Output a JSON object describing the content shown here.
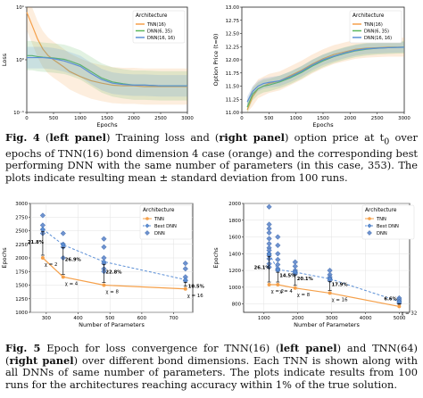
{
  "figure4": {
    "caption": {
      "label": "Fig. 4",
      "p1": " (",
      "left": "left panel",
      "p2": ") Training loss and (",
      "right": "right panel",
      "p3": ") option price at t",
      "sub": "0",
      "p4": " over epochs of TNN(16) bond dimension 4 case (orange) and the corresponding best performing DNN with the same number of parameters (in this case, 353). The plots indicate resulting mean ± standard deviation from 100 runs."
    }
  },
  "figure5": {
    "caption": {
      "label": "Fig. 5",
      "p1": " Epoch for loss convergence for TNN(16) (",
      "left": "left panel",
      "p2": ") and TNN(64) (",
      "right": "right panel",
      "p3": ") over different bond dimensions. Each TNN is shown along with all DNNs of same number of parameters. The plots indicate results from 100 runs for the architectures reaching accuracy within 1% of the true solution."
    }
  },
  "chart_data": [
    {
      "type": "line",
      "xlabel": "Epochs",
      "ylabel": "Loss",
      "yscale": "log",
      "xlim": [
        0,
        3000
      ],
      "ylim": [
        0.1,
        10
      ],
      "x_ticks": [
        "0",
        "500",
        "1000",
        "1500",
        "2000",
        "2500",
        "3000"
      ],
      "y_ticks": [
        "10⁻¹",
        "10⁰",
        "10¹"
      ],
      "legend_title": "Architecture",
      "legend_position": "top-right",
      "x": [
        0,
        100,
        200,
        300,
        400,
        500,
        600,
        700,
        800,
        1000,
        1200,
        1400,
        1600,
        1800,
        2000,
        2200,
        2500,
        2800,
        3000
      ],
      "series": [
        {
          "name": "TNN(16)",
          "color": "#f5a04a",
          "values": [
            8.0,
            4.5,
            2.5,
            1.6,
            1.2,
            1.0,
            0.85,
            0.72,
            0.6,
            0.48,
            0.4,
            0.36,
            0.33,
            0.32,
            0.32,
            0.31,
            0.31,
            0.31,
            0.31
          ]
        },
        {
          "name": "DNN(6, 35)",
          "color": "#5cb85c",
          "values": [
            1.2,
            1.2,
            1.15,
            1.12,
            1.1,
            1.08,
            1.05,
            1.02,
            0.95,
            0.8,
            0.6,
            0.45,
            0.38,
            0.35,
            0.33,
            0.33,
            0.32,
            0.32,
            0.32
          ]
        },
        {
          "name": "DNN(16, 16)",
          "color": "#5b8fd6",
          "values": [
            1.1,
            1.1,
            1.1,
            1.1,
            1.08,
            1.05,
            1.0,
            0.95,
            0.88,
            0.75,
            0.55,
            0.42,
            0.36,
            0.34,
            0.33,
            0.33,
            0.32,
            0.32,
            0.32
          ]
        }
      ]
    },
    {
      "type": "line",
      "xlabel": "Epochs",
      "ylabel": "Option Price (t=0)",
      "xlim": [
        0,
        3000
      ],
      "ylim": [
        11.0,
        13.0
      ],
      "x_ticks": [
        "0",
        "500",
        "1000",
        "1500",
        "2000",
        "2500",
        "3000"
      ],
      "y_ticks": [
        "11.00",
        "11.25",
        "11.50",
        "11.75",
        "12.00",
        "12.25",
        "12.50",
        "12.75",
        "13.00"
      ],
      "legend_title": "Architecture",
      "legend_position": "top-right",
      "x": [
        100,
        200,
        300,
        400,
        500,
        700,
        900,
        1100,
        1300,
        1500,
        1700,
        1900,
        2100,
        2300,
        2500,
        2700,
        3000
      ],
      "series": [
        {
          "name": "TNN(16)",
          "color": "#f5a04a",
          "values": [
            11.05,
            11.3,
            11.45,
            11.5,
            11.55,
            11.6,
            11.7,
            11.8,
            11.92,
            12.02,
            12.1,
            12.15,
            12.2,
            12.22,
            12.23,
            12.24,
            12.24
          ]
        },
        {
          "name": "DNN(6, 35)",
          "color": "#5cb85c",
          "values": [
            11.1,
            11.35,
            11.45,
            11.5,
            11.52,
            11.58,
            11.66,
            11.76,
            11.88,
            11.98,
            12.06,
            12.12,
            12.17,
            12.2,
            12.22,
            12.23,
            12.24
          ]
        },
        {
          "name": "DNN(16, 16)",
          "color": "#5b8fd6",
          "values": [
            11.2,
            11.4,
            11.5,
            11.55,
            11.57,
            11.6,
            11.68,
            11.78,
            11.9,
            12.0,
            12.07,
            12.13,
            12.18,
            12.21,
            12.22,
            12.23,
            12.24
          ]
        }
      ]
    },
    {
      "type": "scatter",
      "xlabel": "Number of Parameters",
      "ylabel": "Epochs",
      "xlim": [
        250,
        760
      ],
      "ylim": [
        1000,
        3000
      ],
      "x_ticks": [
        "300",
        "400",
        "500",
        "600",
        "700"
      ],
      "y_ticks": [
        "1000",
        "1250",
        "1500",
        "1750",
        "2000",
        "2250",
        "2500",
        "2750",
        "3000"
      ],
      "legend_title": "Architecture",
      "legend_position": "top-right",
      "legend": [
        "TNN",
        "Best DNN",
        "DNN"
      ],
      "tnn": {
        "x": [
          289,
          353,
          481,
          737
        ],
        "y": [
          2000,
          1650,
          1500,
          1430
        ]
      },
      "best_dnn": {
        "x": [
          289,
          353,
          481,
          737
        ],
        "y": [
          2530,
          2240,
          1930,
          1600
        ]
      },
      "dnn": [
        {
          "x": 289,
          "y": [
            2780,
            2600,
            2520,
            2450
          ]
        },
        {
          "x": 353,
          "y": [
            2450,
            2250,
            2200,
            2000
          ]
        },
        {
          "x": 481,
          "y": [
            2350,
            2200,
            2000,
            1900,
            1800,
            1750
          ]
        },
        {
          "x": 737,
          "y": [
            1900,
            1800,
            1650,
            1580
          ]
        }
      ],
      "point_labels": [
        "χ = 2",
        "χ = 4",
        "χ = 8",
        "χ = 16"
      ],
      "percent_labels": [
        "21.8%",
        "26.9%",
        "22.8%",
        "10.5%"
      ]
    },
    {
      "type": "scatter",
      "xlabel": "Number of Parameters",
      "ylabel": "Epochs",
      "xlim": [
        400,
        5300
      ],
      "ylim": [
        700,
        2000
      ],
      "x_ticks": [
        "1000",
        "2000",
        "3000",
        "4000",
        "5000"
      ],
      "y_ticks": [
        "800",
        "1000",
        "1200",
        "1400",
        "1600",
        "1800",
        "2000"
      ],
      "legend_title": "Architecture",
      "legend_position": "top-right",
      "legend": [
        "TNN",
        "Best DNN",
        "DNN"
      ],
      "tnn": {
        "x": [
          1153,
          1409,
          1921,
          2945,
          4993
        ],
        "y": [
          1030,
          1030,
          990,
          930,
          770
        ]
      },
      "best_dnn": {
        "x": [
          1153,
          1409,
          1921,
          2945,
          4993
        ],
        "y": [
          1400,
          1210,
          1180,
          1100,
          830
        ]
      },
      "dnn": [
        {
          "x": 1153,
          "y": [
            1960,
            1750,
            1700,
            1650,
            1580,
            1520,
            1470,
            1440,
            1400,
            1380,
            1340,
            1280,
            1240
          ]
        },
        {
          "x": 1409,
          "y": [
            1600,
            1500,
            1400,
            1330,
            1270,
            1220,
            1200
          ]
        },
        {
          "x": 1921,
          "y": [
            1300,
            1250,
            1200,
            1180,
            1160
          ]
        },
        {
          "x": 2945,
          "y": [
            1200,
            1150,
            1120,
            1100,
            1080
          ]
        },
        {
          "x": 4993,
          "y": [
            870,
            850,
            830,
            810
          ]
        }
      ],
      "point_labels": [
        "χ = 2",
        "χ = 4",
        "χ = 8",
        "χ = 16",
        "χ = 32"
      ],
      "percent_labels": [
        "26.1%",
        "14.5%",
        "20.1%",
        "17.9%",
        "6.6%"
      ]
    }
  ]
}
